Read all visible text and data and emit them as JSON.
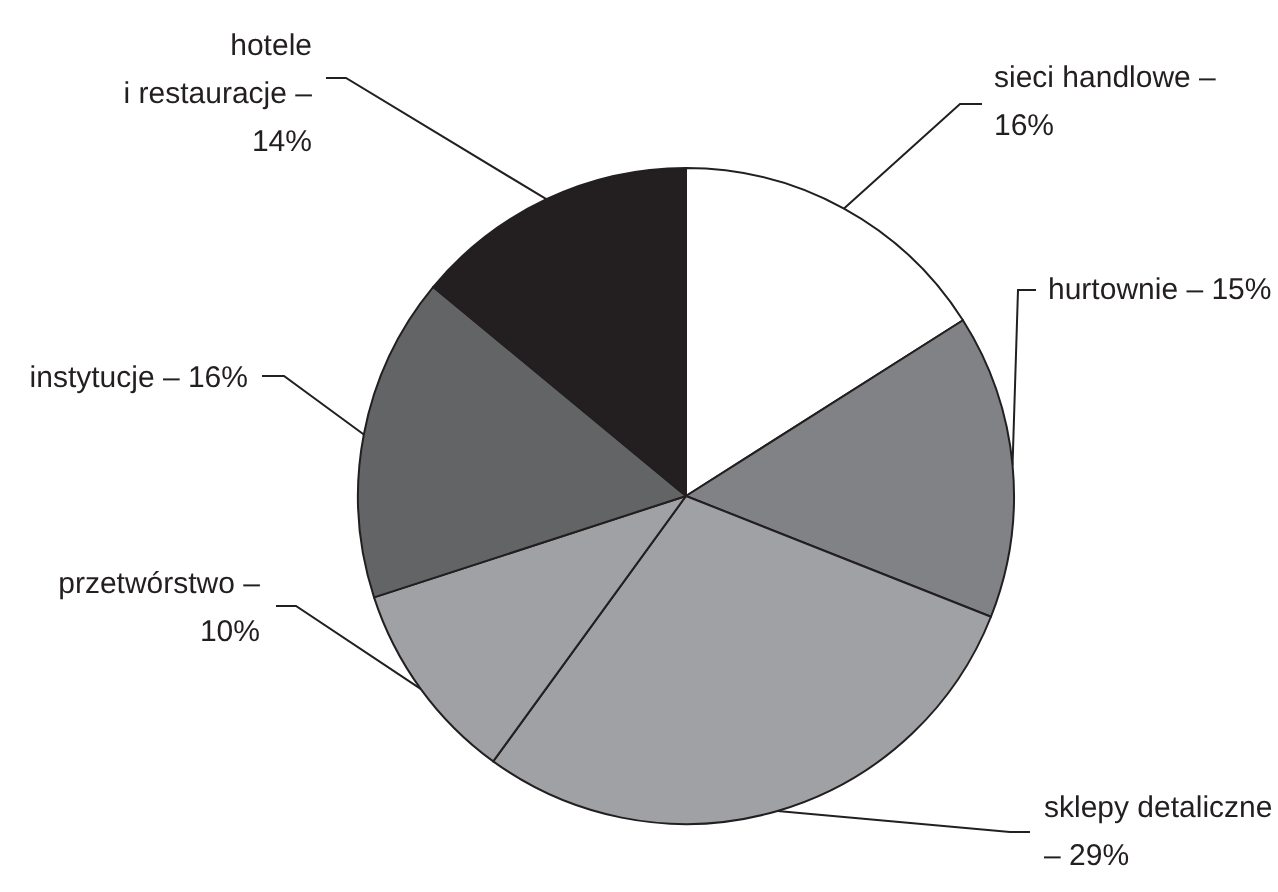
{
  "chart_data": {
    "type": "pie",
    "categories": [
      "sieci handlowe –",
      "hurtownie –",
      "sklepy detaliczne –",
      "przetwórstwo –",
      "instytucje –",
      "hotele i restauracje –"
    ],
    "values": [
      16,
      15,
      29,
      10,
      16,
      14
    ],
    "colors": [
      "#ffffff",
      "#808285",
      "#a0a1a4",
      "#a0a1a4",
      "#636466",
      "#231f20"
    ],
    "value_labels": [
      "16%",
      "15%",
      "29%",
      "10%",
      "16%",
      "14%"
    ]
  }
}
